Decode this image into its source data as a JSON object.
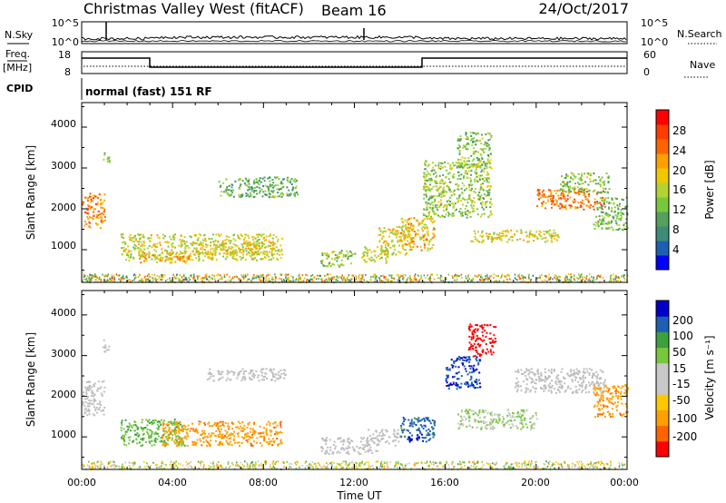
{
  "header": {
    "station": "Christmas Valley West (fitACF)",
    "beam": "Beam 16",
    "date": "24/Oct/2017"
  },
  "strips": {
    "nsky_label": "N.Sky",
    "nsky_ticks": [
      "10^5",
      "10^0"
    ],
    "nsearch_label": "N.Search",
    "nsearch_ticks": [
      "10^5",
      "10^0"
    ],
    "freq_label_1": "Freq.",
    "freq_label_2": "[MHz]",
    "freq_ticks": [
      "18",
      "8"
    ],
    "nave_label": "Nave",
    "nave_ticks": [
      "60",
      "0"
    ],
    "cpid_label": "CPID",
    "cpid_text": "normal (fast) 151 RF"
  },
  "colors": {
    "power_scale": [
      "#0000ff",
      "#1e5fb4",
      "#3c8c78",
      "#55a05a",
      "#78c83c",
      "#b4d232",
      "#f0c800",
      "#ffa000",
      "#ff6400",
      "#ff3c00",
      "#ff0000"
    ],
    "velocity_scale": [
      "#ff0000",
      "#ff6400",
      "#ffa000",
      "#ffc800",
      "#c8c8c8",
      "#c8c8c8",
      "#78c83c",
      "#3ca03c",
      "#1e5fb4",
      "#0000c8"
    ],
    "ground_scatter": "#bebebe"
  },
  "chart_data": [
    {
      "type": "heatmap",
      "title": "",
      "quantity": "Power",
      "xlabel": "",
      "ylabel": "Slant Range [km]",
      "xticks": [
        "00:00",
        "04:00",
        "08:00",
        "12:00",
        "16:00",
        "20:00",
        "00:00"
      ],
      "yticks": [
        "1000",
        "2000",
        "3000",
        "4000"
      ],
      "xlim_hours": [
        0,
        24
      ],
      "ylim_km": [
        200,
        4600
      ],
      "colorbar": {
        "label": "Power [dB]",
        "ticks": [
          "4",
          "8",
          "12",
          "16",
          "20",
          "24",
          "28"
        ],
        "range": [
          0,
          30
        ]
      },
      "patches": [
        {
          "t0": 0.0,
          "t1": 1.0,
          "r0": 1550,
          "r1": 2400,
          "level": 22
        },
        {
          "t0": 0.9,
          "t1": 1.2,
          "r0": 3100,
          "r1": 3400,
          "level": 13
        },
        {
          "t0": 1.7,
          "t1": 8.8,
          "r0": 750,
          "r1": 1400,
          "level": 16
        },
        {
          "t0": 2.5,
          "t1": 5.0,
          "r0": 700,
          "r1": 950,
          "level": 20
        },
        {
          "t0": 5.0,
          "t1": 8.5,
          "r0": 900,
          "r1": 1200,
          "level": 17
        },
        {
          "t0": 6.0,
          "t1": 9.5,
          "r0": 2300,
          "r1": 2800,
          "level": 10
        },
        {
          "t0": 10.5,
          "t1": 12.0,
          "r0": 600,
          "r1": 1000,
          "level": 13
        },
        {
          "t0": 12.3,
          "t1": 13.5,
          "r0": 700,
          "r1": 1100,
          "level": 15
        },
        {
          "t0": 13.0,
          "t1": 14.5,
          "r0": 900,
          "r1": 1600,
          "level": 17
        },
        {
          "t0": 14.0,
          "t1": 15.5,
          "r0": 1000,
          "r1": 1800,
          "level": 19
        },
        {
          "t0": 15.0,
          "t1": 18.0,
          "r0": 1800,
          "r1": 3200,
          "level": 13
        },
        {
          "t0": 16.5,
          "t1": 18.0,
          "r0": 3000,
          "r1": 3900,
          "level": 12
        },
        {
          "t0": 17.0,
          "t1": 21.0,
          "r0": 1200,
          "r1": 1500,
          "level": 17
        },
        {
          "t0": 20.0,
          "t1": 23.0,
          "r0": 2000,
          "r1": 2500,
          "level": 24
        },
        {
          "t0": 21.0,
          "t1": 23.2,
          "r0": 2400,
          "r1": 2900,
          "level": 12
        },
        {
          "t0": 22.5,
          "t1": 24.0,
          "r0": 1500,
          "r1": 2300,
          "level": 11
        }
      ]
    },
    {
      "type": "heatmap",
      "title": "",
      "quantity": "Velocity",
      "xlabel": "Time UT",
      "ylabel": "Slant Range [km]",
      "xticks": [
        "00:00",
        "04:00",
        "08:00",
        "12:00",
        "16:00",
        "20:00",
        "00:00"
      ],
      "yticks": [
        "1000",
        "2000",
        "3000",
        "4000"
      ],
      "xlim_hours": [
        0,
        24
      ],
      "ylim_km": [
        200,
        4600
      ],
      "colorbar": {
        "label": "Velocity [m s⁻¹]",
        "ticks": [
          "-200",
          "-100",
          "-50",
          "-15",
          "15",
          "50",
          "100",
          "200"
        ]
      },
      "patches": [
        {
          "t0": 0.0,
          "t1": 1.0,
          "r0": 1550,
          "r1": 2400,
          "value": 0
        },
        {
          "t0": 0.9,
          "t1": 1.2,
          "r0": 3100,
          "r1": 3400,
          "value": 0
        },
        {
          "t0": 1.7,
          "t1": 4.5,
          "r0": 800,
          "r1": 1450,
          "value": 30
        },
        {
          "t0": 3.5,
          "t1": 8.8,
          "r0": 800,
          "r1": 1400,
          "value": -60
        },
        {
          "t0": 5.5,
          "t1": 9.0,
          "r0": 2400,
          "r1": 2700,
          "value": 0
        },
        {
          "t0": 10.5,
          "t1": 13.0,
          "r0": 600,
          "r1": 1000,
          "value": 0
        },
        {
          "t0": 12.5,
          "t1": 14.0,
          "r0": 800,
          "r1": 1200,
          "value": 0
        },
        {
          "t0": 14.0,
          "t1": 15.5,
          "r0": 900,
          "r1": 1500,
          "value": 90
        },
        {
          "t0": 14.3,
          "t1": 15.0,
          "r0": 900,
          "r1": 1100,
          "value": 180
        },
        {
          "t0": 16.0,
          "t1": 17.5,
          "r0": 2200,
          "r1": 3000,
          "value": 150
        },
        {
          "t0": 17.0,
          "t1": 18.2,
          "r0": 3000,
          "r1": 3800,
          "value": -180
        },
        {
          "t0": 16.5,
          "t1": 20.0,
          "r0": 1200,
          "r1": 1700,
          "value": 10
        },
        {
          "t0": 19.0,
          "t1": 23.0,
          "r0": 2100,
          "r1": 2700,
          "value": 0
        },
        {
          "t0": 22.5,
          "t1": 24.0,
          "r0": 1500,
          "r1": 2300,
          "value": -60
        }
      ]
    }
  ]
}
